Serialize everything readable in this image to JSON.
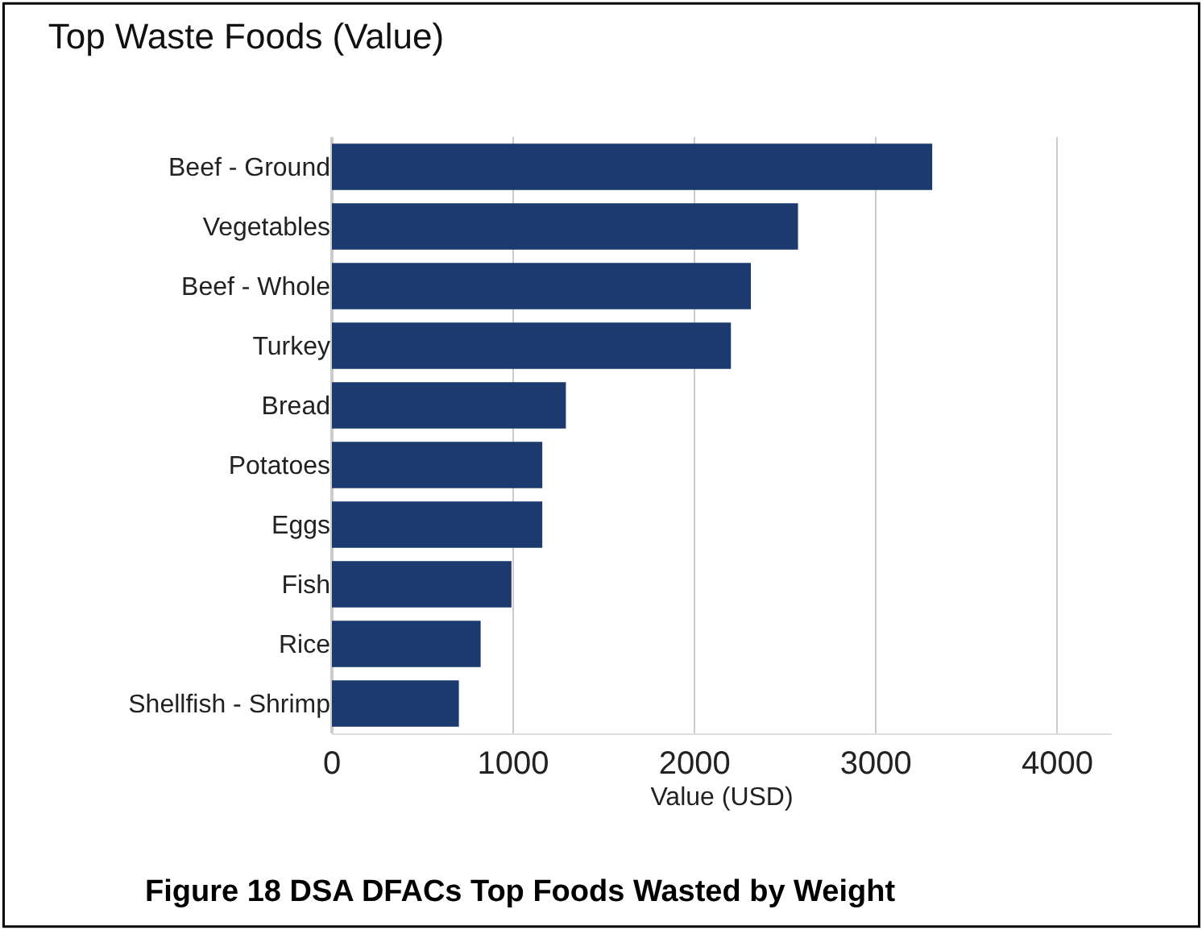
{
  "chart_data": {
    "type": "bar",
    "orientation": "horizontal",
    "title": "Top Waste Foods (Value)",
    "xlabel": "Value (USD)",
    "categories": [
      "Beef - Ground",
      "Vegetables",
      "Beef - Whole",
      "Turkey",
      "Bread",
      "Potatoes",
      "Eggs",
      "Fish",
      "Rice",
      "Shellfish - Shrimp"
    ],
    "values": [
      3310,
      2570,
      2310,
      2200,
      1290,
      1160,
      1160,
      990,
      820,
      700
    ],
    "color": "#1c3a6e",
    "xlim": [
      0,
      4300
    ],
    "xticks": [
      0,
      1000,
      2000,
      3000,
      4000
    ],
    "grid": "x",
    "annotations": [
      "Figure 18 DSA DFACs Top Foods Wasted by Weight"
    ]
  }
}
